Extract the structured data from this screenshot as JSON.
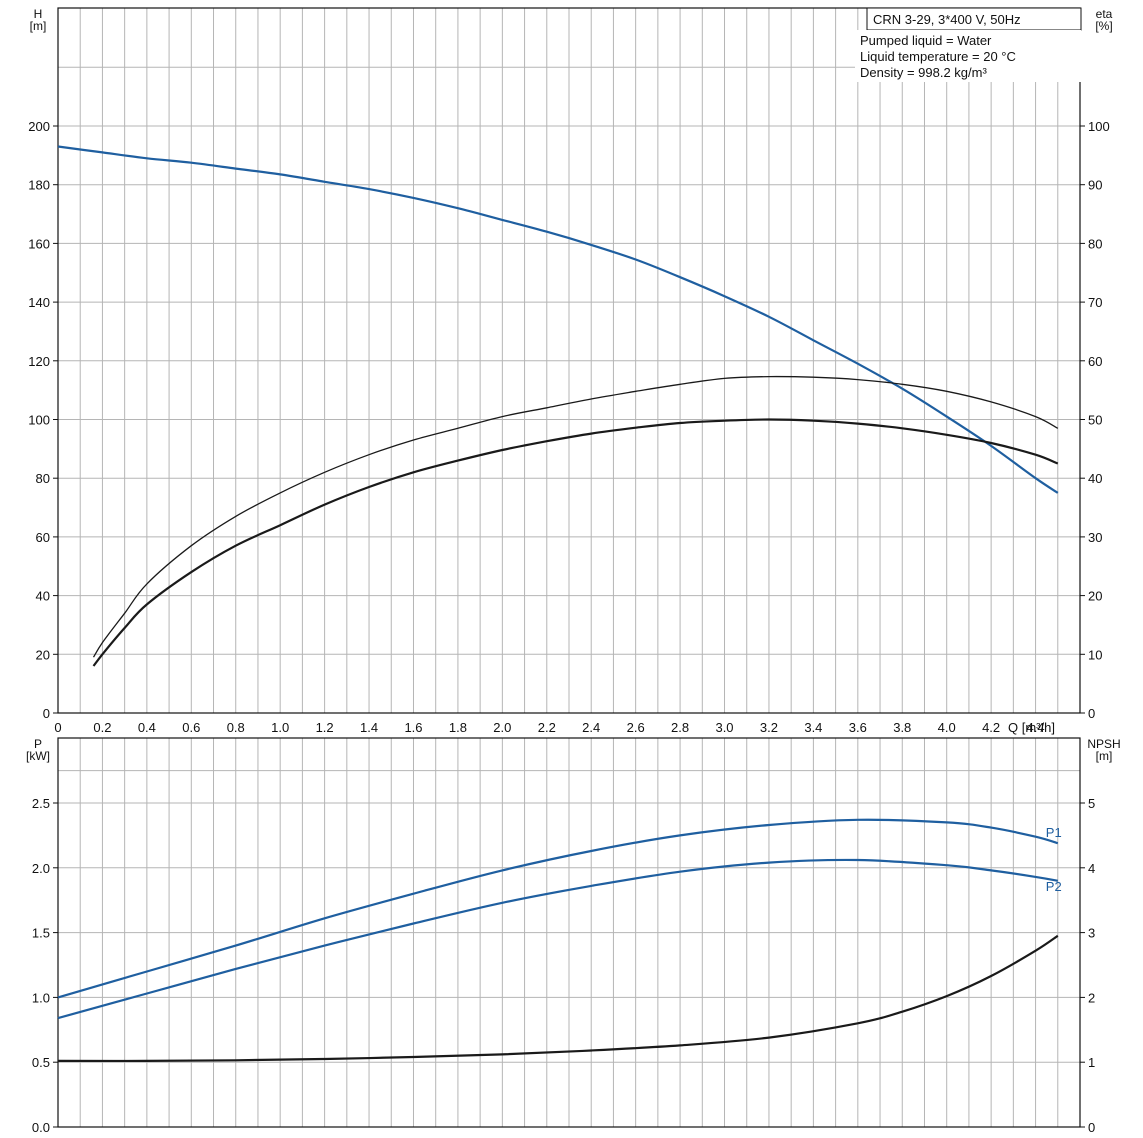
{
  "chart_data": [
    {
      "type": "line",
      "title": "CRN 3-29, 3*400 V, 50Hz",
      "info_lines": [
        "Pumped liquid = Water",
        "Liquid temperature = 20 °C",
        "Density = 998.2 kg/m³"
      ],
      "xlabel": "Q [m³/h]",
      "ylabel_left": "H\n[m]",
      "ylabel_right": "eta\n[%]",
      "xlim": [
        0,
        4.6
      ],
      "ylim_left": [
        0,
        200
      ],
      "ylim_right": [
        0,
        100
      ],
      "x_ticks": [
        "0",
        "0.2",
        "0.4",
        "0.6",
        "0.8",
        "1.0",
        "1.2",
        "1.4",
        "1.6",
        "1.8",
        "2.0",
        "2.2",
        "2.4",
        "2.6",
        "2.8",
        "3.0",
        "3.2",
        "3.4",
        "3.6",
        "3.8",
        "4.0",
        "4.2",
        "4.4"
      ],
      "y_left_ticks": [
        "0",
        "20",
        "40",
        "60",
        "80",
        "100",
        "120",
        "140",
        "160",
        "180",
        "200"
      ],
      "y_right_ticks": [
        "0",
        "10",
        "20",
        "30",
        "40",
        "50",
        "60",
        "70",
        "80",
        "90",
        "100"
      ],
      "grid": true,
      "series": [
        {
          "name": "",
          "axis": "left",
          "color": "#1f5fa0",
          "x": [
            0,
            0.2,
            0.4,
            0.6,
            0.8,
            1.0,
            1.2,
            1.4,
            1.6,
            1.8,
            2.0,
            2.2,
            2.4,
            2.6,
            2.8,
            3.0,
            3.2,
            3.4,
            3.6,
            3.8,
            4.0,
            4.2,
            4.4,
            4.5
          ],
          "y": [
            193,
            191,
            189,
            187.5,
            185.5,
            183.5,
            181,
            178.5,
            175.5,
            172,
            168,
            164,
            159.5,
            154.5,
            148.5,
            142,
            135,
            127,
            119,
            110.5,
            101,
            91,
            80,
            75
          ]
        },
        {
          "name": "",
          "axis": "right",
          "color": "#1a1a1a",
          "x": [
            0.16,
            0.2,
            0.3,
            0.4,
            0.6,
            0.8,
            1.0,
            1.2,
            1.4,
            1.6,
            1.8,
            2.0,
            2.2,
            2.4,
            2.6,
            2.8,
            3.0,
            3.2,
            3.4,
            3.6,
            3.8,
            4.0,
            4.2,
            4.4,
            4.5
          ],
          "y": [
            9.5,
            12,
            17,
            22,
            28.5,
            33.5,
            37.5,
            41,
            44,
            46.5,
            48.5,
            50.5,
            52,
            53.5,
            54.8,
            56,
            57,
            57.3,
            57.2,
            56.8,
            56,
            54.8,
            53,
            50.5,
            48.5
          ]
        },
        {
          "name": "",
          "axis": "right",
          "color": "#1a1a1a",
          "x": [
            0.16,
            0.2,
            0.3,
            0.4,
            0.6,
            0.8,
            1.0,
            1.2,
            1.4,
            1.6,
            1.8,
            2.0,
            2.2,
            2.4,
            2.6,
            2.8,
            3.0,
            3.2,
            3.4,
            3.6,
            3.8,
            4.0,
            4.2,
            4.4,
            4.5
          ],
          "y": [
            8,
            10,
            14.5,
            18.5,
            24,
            28.5,
            32,
            35.5,
            38.5,
            41,
            43,
            44.8,
            46.3,
            47.6,
            48.6,
            49.4,
            49.8,
            50,
            49.8,
            49.3,
            48.5,
            47.4,
            46,
            44,
            42.5
          ]
        }
      ]
    },
    {
      "type": "line",
      "xlabel": "",
      "ylabel_left": "P\n[kW]",
      "ylabel_right": "NPSH\n[m]",
      "xlim": [
        0,
        4.6
      ],
      "ylim_left": [
        0,
        2.5
      ],
      "ylim_right": [
        0,
        5
      ],
      "y_left_ticks": [
        "0.0",
        "0.5",
        "1.0",
        "1.5",
        "2.0",
        "2.5"
      ],
      "y_right_ticks": [
        "0",
        "1",
        "2",
        "3",
        "4",
        "5"
      ],
      "grid": true,
      "series": [
        {
          "name": "P1",
          "axis": "left",
          "color": "#1f5fa0",
          "x": [
            0,
            0.4,
            0.8,
            1.2,
            1.6,
            2.0,
            2.4,
            2.8,
            3.2,
            3.6,
            4.0,
            4.2,
            4.4,
            4.5
          ],
          "y": [
            1.0,
            1.2,
            1.4,
            1.61,
            1.8,
            1.98,
            2.13,
            2.25,
            2.33,
            2.37,
            2.35,
            2.31,
            2.24,
            2.19
          ]
        },
        {
          "name": "P2",
          "axis": "left",
          "color": "#1f5fa0",
          "x": [
            0,
            0.4,
            0.8,
            1.2,
            1.6,
            2.0,
            2.4,
            2.8,
            3.2,
            3.6,
            4.0,
            4.2,
            4.4,
            4.5
          ],
          "y": [
            0.84,
            1.03,
            1.22,
            1.4,
            1.57,
            1.73,
            1.86,
            1.97,
            2.04,
            2.06,
            2.02,
            1.98,
            1.93,
            1.9
          ]
        },
        {
          "name": "",
          "axis": "right",
          "color": "#1a1a1a",
          "x": [
            0,
            0.4,
            0.8,
            1.2,
            1.6,
            2.0,
            2.4,
            2.8,
            3.2,
            3.6,
            3.8,
            4.0,
            4.2,
            4.4,
            4.5
          ],
          "y": [
            1.02,
            1.02,
            1.03,
            1.05,
            1.08,
            1.12,
            1.18,
            1.26,
            1.38,
            1.6,
            1.78,
            2.02,
            2.33,
            2.72,
            2.95
          ]
        }
      ]
    }
  ]
}
